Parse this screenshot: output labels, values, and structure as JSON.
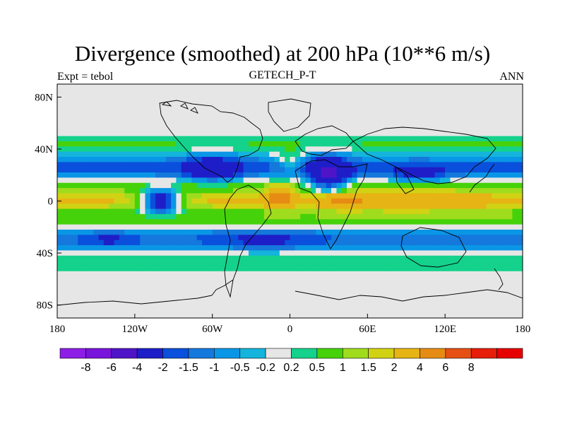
{
  "title": "Divergence (smoothed) at 200 hPa (10**6 m/s)",
  "left_subtitle": "Expt = tebol",
  "center_subtitle": "GETECH_P-T",
  "right_subtitle": "ANN",
  "axes": {
    "x_ticks": [
      {
        "value": -180,
        "label": "180"
      },
      {
        "value": -120,
        "label": "120W"
      },
      {
        "value": -60,
        "label": "60W"
      },
      {
        "value": 0,
        "label": "0"
      },
      {
        "value": 60,
        "label": "60E"
      },
      {
        "value": 120,
        "label": "120E"
      },
      {
        "value": 180,
        "label": "180"
      }
    ],
    "y_ticks": [
      {
        "value": 80,
        "label": "80N"
      },
      {
        "value": 40,
        "label": "40N"
      },
      {
        "value": 0,
        "label": "0"
      },
      {
        "value": -40,
        "label": "40S"
      },
      {
        "value": -80,
        "label": "80S"
      }
    ],
    "xlim": [
      -180,
      180
    ],
    "ylim": [
      -90,
      90
    ]
  },
  "colorbar": {
    "colors": [
      "#8c1ee6",
      "#7814dc",
      "#5014c8",
      "#1e1ec8",
      "#0a50dc",
      "#1478dc",
      "#0a96e6",
      "#14b4dc",
      "#e6e6e6",
      "#14d28c",
      "#46d20a",
      "#a0dc1e",
      "#d2d214",
      "#e6b414",
      "#e68c14",
      "#e65014",
      "#e61e0a",
      "#e60000"
    ],
    "labels": [
      "-8",
      "-6",
      "-4",
      "-2",
      "-1.5",
      "-1",
      "-0.5",
      "-0.2",
      "0.2",
      "0.5",
      "1",
      "1.5",
      "2",
      "4",
      "6",
      "8"
    ]
  },
  "field": {
    "contour_levels": [
      -8,
      -6,
      -4,
      -2,
      -1.5,
      -1,
      -0.5,
      -0.2,
      0.2,
      0.5,
      1,
      1.5,
      2,
      4,
      6,
      8
    ],
    "zonal_bands": [
      {
        "lat": 44,
        "width": 8,
        "amplitude": 0.7
      },
      {
        "lat": 26,
        "width": 9,
        "amplitude": -1.8
      },
      {
        "lat": 12,
        "width": 6,
        "amplitude": 0.9
      },
      {
        "lat": 0,
        "width": 7,
        "amplitude": 2.0
      },
      {
        "lat": -14,
        "width": 6,
        "amplitude": 1.0
      },
      {
        "lat": -30,
        "width": 8,
        "amplitude": -1.6
      },
      {
        "lat": -48,
        "width": 9,
        "amplitude": 0.6
      }
    ],
    "anomalies": [
      {
        "lon": -8,
        "lat": 3,
        "sx": 10,
        "sy": 8,
        "amplitude": 3.5
      },
      {
        "lon": 90,
        "lat": 0,
        "sx": 60,
        "sy": 8,
        "amplitude": 1.8
      },
      {
        "lon": 40,
        "lat": 0,
        "sx": 15,
        "sy": 6,
        "amplitude": 2.5
      },
      {
        "lon": -100,
        "lat": 0,
        "sx": 15,
        "sy": 9,
        "amplitude": -4.5
      },
      {
        "lon": -60,
        "lat": 25,
        "sx": 20,
        "sy": 10,
        "amplitude": -2.5
      },
      {
        "lon": 30,
        "lat": 20,
        "sx": 15,
        "sy": 15,
        "amplitude": -3.5
      },
      {
        "lon": 100,
        "lat": 20,
        "sx": 20,
        "sy": 7,
        "amplitude": -1.5
      },
      {
        "lon": -20,
        "lat": -30,
        "sx": 40,
        "sy": 8,
        "amplitude": -1.0
      },
      {
        "lon": 0,
        "lat": 30,
        "sx": 10,
        "sy": 8,
        "amplitude": 1.5
      },
      {
        "lon": -140,
        "lat": -30,
        "sx": 20,
        "sy": 6,
        "amplitude": -1.0
      }
    ]
  }
}
